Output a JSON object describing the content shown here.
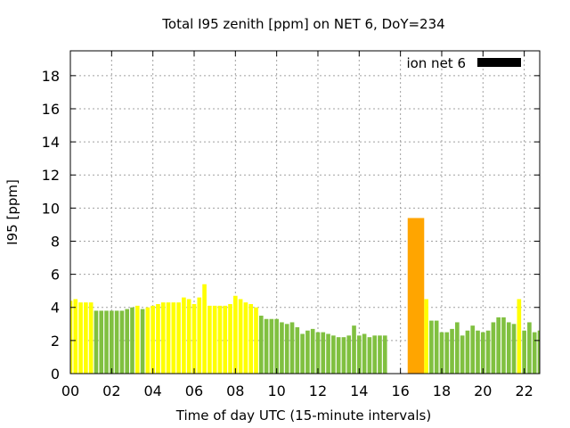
{
  "chart_data": {
    "type": "bar",
    "title": "Total I95 zenith [ppm] on NET 6, DoY=234",
    "xlabel": "Time of day UTC (15-minute intervals)",
    "ylabel": "I95 [ppm]",
    "xlim": [
      0,
      22.75
    ],
    "ylim": [
      0,
      19.5
    ],
    "xticks": [
      0,
      2,
      4,
      6,
      8,
      10,
      12,
      14,
      16,
      18,
      20,
      22
    ],
    "xtick_labels": [
      "00",
      "02",
      "04",
      "06",
      "08",
      "10",
      "12",
      "14",
      "16",
      "18",
      "20",
      "22"
    ],
    "yticks": [
      0,
      2,
      4,
      6,
      8,
      10,
      12,
      14,
      16,
      18
    ],
    "ytick_labels": [
      "0",
      "2",
      "4",
      "6",
      "8",
      "10",
      "12",
      "14",
      "16",
      "18"
    ],
    "grid": true,
    "bar_width_hours": 0.2,
    "legend": {
      "label": "ion net 6",
      "color": "#000000",
      "position": "top-right"
    },
    "colors": {
      "green": "#80c040",
      "yellow": "#ffff00",
      "orange": "#ffa500"
    },
    "bars": [
      {
        "x": 0.0,
        "value": 4.4,
        "color": "yellow"
      },
      {
        "x": 0.25,
        "value": 4.5,
        "color": "yellow"
      },
      {
        "x": 0.5,
        "value": 4.3,
        "color": "yellow"
      },
      {
        "x": 0.75,
        "value": 4.3,
        "color": "yellow"
      },
      {
        "x": 1.0,
        "value": 4.3,
        "color": "yellow"
      },
      {
        "x": 1.25,
        "value": 3.8,
        "color": "green"
      },
      {
        "x": 1.5,
        "value": 3.8,
        "color": "green"
      },
      {
        "x": 1.75,
        "value": 3.8,
        "color": "green"
      },
      {
        "x": 2.0,
        "value": 3.8,
        "color": "green"
      },
      {
        "x": 2.25,
        "value": 3.8,
        "color": "green"
      },
      {
        "x": 2.5,
        "value": 3.8,
        "color": "green"
      },
      {
        "x": 2.75,
        "value": 3.9,
        "color": "green"
      },
      {
        "x": 3.0,
        "value": 4.0,
        "color": "green"
      },
      {
        "x": 3.25,
        "value": 4.1,
        "color": "yellow"
      },
      {
        "x": 3.5,
        "value": 3.9,
        "color": "green"
      },
      {
        "x": 3.75,
        "value": 4.0,
        "color": "yellow"
      },
      {
        "x": 4.0,
        "value": 4.1,
        "color": "yellow"
      },
      {
        "x": 4.25,
        "value": 4.2,
        "color": "yellow"
      },
      {
        "x": 4.5,
        "value": 4.3,
        "color": "yellow"
      },
      {
        "x": 4.75,
        "value": 4.3,
        "color": "yellow"
      },
      {
        "x": 5.0,
        "value": 4.3,
        "color": "yellow"
      },
      {
        "x": 5.25,
        "value": 4.3,
        "color": "yellow"
      },
      {
        "x": 5.5,
        "value": 4.6,
        "color": "yellow"
      },
      {
        "x": 5.75,
        "value": 4.5,
        "color": "yellow"
      },
      {
        "x": 6.0,
        "value": 4.2,
        "color": "yellow"
      },
      {
        "x": 6.25,
        "value": 4.6,
        "color": "yellow"
      },
      {
        "x": 6.5,
        "value": 5.4,
        "color": "yellow"
      },
      {
        "x": 6.75,
        "value": 4.1,
        "color": "yellow"
      },
      {
        "x": 7.0,
        "value": 4.1,
        "color": "yellow"
      },
      {
        "x": 7.25,
        "value": 4.1,
        "color": "yellow"
      },
      {
        "x": 7.5,
        "value": 4.1,
        "color": "yellow"
      },
      {
        "x": 7.75,
        "value": 4.2,
        "color": "yellow"
      },
      {
        "x": 8.0,
        "value": 4.7,
        "color": "yellow"
      },
      {
        "x": 8.25,
        "value": 4.5,
        "color": "yellow"
      },
      {
        "x": 8.5,
        "value": 4.3,
        "color": "yellow"
      },
      {
        "x": 8.75,
        "value": 4.2,
        "color": "yellow"
      },
      {
        "x": 9.0,
        "value": 4.0,
        "color": "yellow"
      },
      {
        "x": 9.25,
        "value": 3.5,
        "color": "green"
      },
      {
        "x": 9.5,
        "value": 3.3,
        "color": "green"
      },
      {
        "x": 9.75,
        "value": 3.3,
        "color": "green"
      },
      {
        "x": 10.0,
        "value": 3.3,
        "color": "green"
      },
      {
        "x": 10.25,
        "value": 3.1,
        "color": "green"
      },
      {
        "x": 10.5,
        "value": 3.0,
        "color": "green"
      },
      {
        "x": 10.75,
        "value": 3.1,
        "color": "green"
      },
      {
        "x": 11.0,
        "value": 2.8,
        "color": "green"
      },
      {
        "x": 11.25,
        "value": 2.4,
        "color": "green"
      },
      {
        "x": 11.5,
        "value": 2.6,
        "color": "green"
      },
      {
        "x": 11.75,
        "value": 2.7,
        "color": "green"
      },
      {
        "x": 12.0,
        "value": 2.5,
        "color": "green"
      },
      {
        "x": 12.25,
        "value": 2.5,
        "color": "green"
      },
      {
        "x": 12.5,
        "value": 2.4,
        "color": "green"
      },
      {
        "x": 12.75,
        "value": 2.3,
        "color": "green"
      },
      {
        "x": 13.0,
        "value": 2.2,
        "color": "green"
      },
      {
        "x": 13.25,
        "value": 2.2,
        "color": "green"
      },
      {
        "x": 13.5,
        "value": 2.3,
        "color": "green"
      },
      {
        "x": 13.75,
        "value": 2.9,
        "color": "green"
      },
      {
        "x": 14.0,
        "value": 2.3,
        "color": "green"
      },
      {
        "x": 14.25,
        "value": 2.4,
        "color": "green"
      },
      {
        "x": 14.5,
        "value": 2.2,
        "color": "green"
      },
      {
        "x": 14.75,
        "value": 2.3,
        "color": "green"
      },
      {
        "x": 15.0,
        "value": 2.3,
        "color": "green"
      },
      {
        "x": 15.25,
        "value": 2.3,
        "color": "green"
      },
      {
        "x": 16.75,
        "value": 9.4,
        "color": "orange",
        "width_hours": 0.8
      },
      {
        "x": 17.25,
        "value": 4.5,
        "color": "yellow"
      },
      {
        "x": 17.5,
        "value": 3.2,
        "color": "green"
      },
      {
        "x": 17.75,
        "value": 3.2,
        "color": "green"
      },
      {
        "x": 18.0,
        "value": 2.5,
        "color": "green"
      },
      {
        "x": 18.25,
        "value": 2.5,
        "color": "green"
      },
      {
        "x": 18.5,
        "value": 2.7,
        "color": "green"
      },
      {
        "x": 18.75,
        "value": 3.1,
        "color": "green"
      },
      {
        "x": 19.0,
        "value": 2.3,
        "color": "green"
      },
      {
        "x": 19.25,
        "value": 2.6,
        "color": "green"
      },
      {
        "x": 19.5,
        "value": 2.9,
        "color": "green"
      },
      {
        "x": 19.75,
        "value": 2.6,
        "color": "green"
      },
      {
        "x": 20.0,
        "value": 2.5,
        "color": "green"
      },
      {
        "x": 20.25,
        "value": 2.6,
        "color": "green"
      },
      {
        "x": 20.5,
        "value": 3.1,
        "color": "green"
      },
      {
        "x": 20.75,
        "value": 3.4,
        "color": "green"
      },
      {
        "x": 21.0,
        "value": 3.4,
        "color": "green"
      },
      {
        "x": 21.25,
        "value": 3.1,
        "color": "green"
      },
      {
        "x": 21.5,
        "value": 3.0,
        "color": "green"
      },
      {
        "x": 21.75,
        "value": 4.5,
        "color": "yellow"
      },
      {
        "x": 22.0,
        "value": 2.6,
        "color": "green"
      },
      {
        "x": 22.25,
        "value": 3.1,
        "color": "green"
      },
      {
        "x": 22.5,
        "value": 2.5,
        "color": "green"
      },
      {
        "x": 22.75,
        "value": 2.6,
        "color": "green"
      }
    ]
  }
}
